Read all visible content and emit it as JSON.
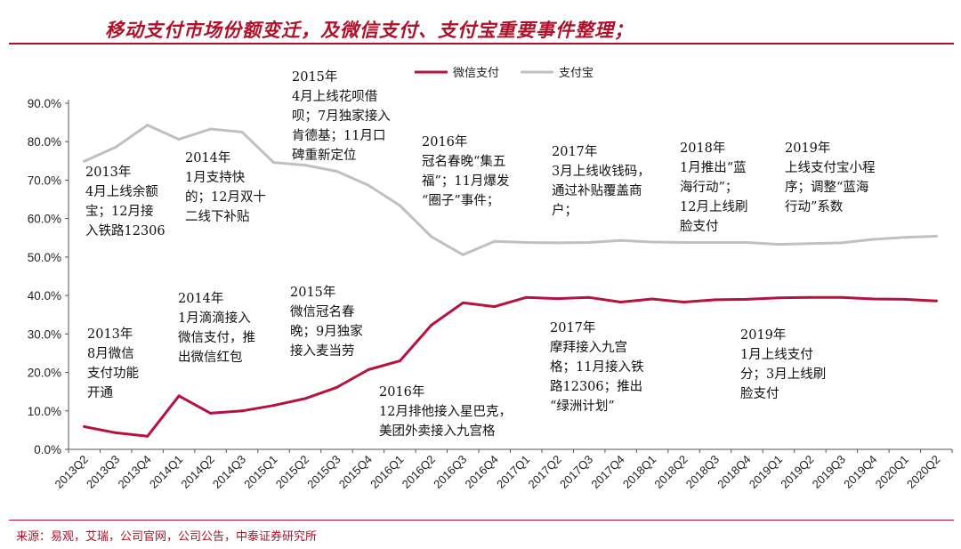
{
  "header": {
    "title": "移动支付市场份额变迁，及微信支付、支付宝重要事件整理；"
  },
  "footer": {
    "source": "来源：易观，艾瑞，公司官网，公司公告，中泰证券研究所"
  },
  "colors": {
    "brand": "#b01028",
    "wechat": "#b5123f",
    "alipay": "#c0c0c0"
  },
  "chart_data": {
    "type": "line",
    "title": "",
    "xlabel": "",
    "ylabel": "",
    "ylim": [
      0,
      90
    ],
    "yticks": [
      "0.0%",
      "10.0%",
      "20.0%",
      "30.0%",
      "40.0%",
      "50.0%",
      "60.0%",
      "70.0%",
      "80.0%",
      "90.0%"
    ],
    "legend_position": "top-center",
    "categories": [
      "2013Q2",
      "2013Q3",
      "2013Q4",
      "2014Q1",
      "2014Q2",
      "2014Q3",
      "2015Q1",
      "2015Q2",
      "2015Q3",
      "2015Q4",
      "2016Q1",
      "2016Q2",
      "2016Q3",
      "2016Q4",
      "2017Q1",
      "2017Q2",
      "2017Q3",
      "2017Q4",
      "2018Q1",
      "2018Q2",
      "2018Q3",
      "2018Q4",
      "2019Q1",
      "2019Q2",
      "2019Q3",
      "2019Q4",
      "2020Q1",
      "2020Q2"
    ],
    "series": [
      {
        "name": "微信支付",
        "values": [
          5.9,
          4.3,
          3.4,
          13.9,
          9.4,
          10.0,
          11.4,
          13.2,
          16.1,
          20.7,
          23.0,
          32.3,
          38.1,
          37.1,
          39.5,
          39.2,
          39.5,
          38.3,
          39.1,
          38.3,
          38.9,
          39.0,
          39.4,
          39.5,
          39.5,
          39.1,
          39.0,
          38.6
        ]
      },
      {
        "name": "支付宝",
        "values": [
          74.9,
          78.6,
          84.3,
          80.6,
          83.3,
          82.5,
          74.6,
          73.9,
          72.3,
          68.7,
          63.4,
          55.3,
          50.6,
          54.1,
          53.8,
          53.7,
          53.8,
          54.3,
          53.9,
          53.8,
          53.8,
          53.8,
          53.3,
          53.5,
          53.7,
          54.6,
          55.1,
          55.4
        ]
      }
    ],
    "annotations": [
      {
        "id": "a1",
        "lines": [
          "2013年",
          "4月上线余额",
          "宝；12月接",
          "入铁路12306"
        ]
      },
      {
        "id": "a2",
        "lines": [
          "2014年",
          "1月支持快",
          "的；12月双十",
          "二线下补贴"
        ]
      },
      {
        "id": "a3",
        "lines": [
          "2015年",
          "4月上线花呗借",
          "呗；7月独家接入",
          "肯德基；11月口",
          "碑重新定位"
        ]
      },
      {
        "id": "a4",
        "lines": [
          "2016年",
          "冠名春晚“集五",
          "福”；11月爆发",
          "“圈子”事件；"
        ]
      },
      {
        "id": "a5",
        "lines": [
          "2017年",
          "3月上线收钱码，",
          "通过补贴覆盖商",
          "户；"
        ]
      },
      {
        "id": "a6",
        "lines": [
          "2018年",
          "1月推出“蓝",
          "海行动”；",
          "12月上线刷",
          "脸支付"
        ]
      },
      {
        "id": "a7",
        "lines": [
          "2019年",
          "上线支付宝小程",
          "序；调整“蓝海",
          "行动”系数"
        ]
      },
      {
        "id": "b1",
        "lines": [
          "2013年",
          "8月微信",
          "支付功能",
          "开通"
        ]
      },
      {
        "id": "b2",
        "lines": [
          "2014年",
          "1月滴滴接入",
          "微信支付，推",
          "出微信红包"
        ]
      },
      {
        "id": "b3",
        "lines": [
          "2015年",
          "微信冠名春",
          "晚；9月独家",
          "接入麦当劳"
        ]
      },
      {
        "id": "b4",
        "lines": [
          "2016年",
          "12月排他接入星巴克，",
          "美团外卖接入九宫格"
        ]
      },
      {
        "id": "b5",
        "lines": [
          "2017年",
          "摩拜接入九宫",
          "格；11月接入铁",
          "路12306；推出",
          "“绿洲计划”"
        ]
      },
      {
        "id": "b6",
        "lines": [
          "2019年",
          "1月上线支付",
          "分；3月上线刷",
          "脸支付"
        ]
      }
    ]
  }
}
